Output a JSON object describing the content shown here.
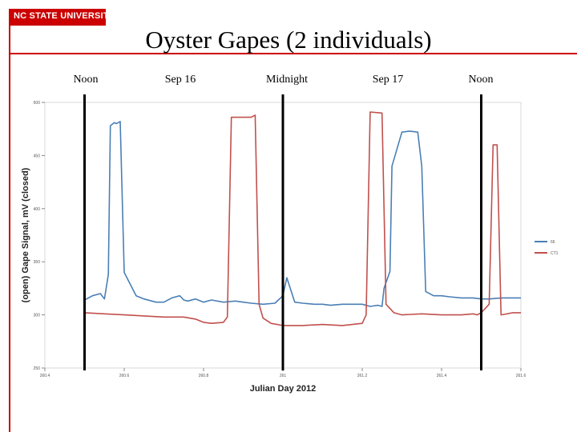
{
  "header": {
    "logo_text": "NC STATE UNIVERSITY",
    "title": "Oyster Gapes (2 individuals)"
  },
  "time_labels": [
    "Noon",
    "Sep 16",
    "Midnight",
    "Sep 17",
    "Noon"
  ],
  "colors": {
    "brand": "#cc0000",
    "series_a": "#4a7fb5",
    "series_b": "#c0504d"
  },
  "chart_data": {
    "type": "line",
    "xlabel": "Julian Day 2012",
    "ylabel": "(open)  Gape Signal, mV  (closed)",
    "xlim": [
      260.4,
      261.6
    ],
    "ylim": [
      250,
      500
    ],
    "xticks": [
      "260.4",
      "260.6",
      "260.8",
      "261",
      "261.2",
      "261.4",
      "261.6"
    ],
    "yticks": [
      "250",
      "300",
      "350",
      "400",
      "450",
      "500"
    ],
    "vertical_lines": [
      260.5,
      261.0,
      261.5
    ],
    "legend": {
      "position": "right"
    },
    "series": [
      {
        "name": "66",
        "x": [
          260.5,
          260.52,
          260.54,
          260.55,
          260.56,
          260.565,
          260.575,
          260.58,
          260.59,
          260.6,
          260.63,
          260.65,
          260.68,
          260.7,
          260.72,
          260.74,
          260.75,
          260.76,
          260.78,
          260.8,
          260.82,
          260.85,
          260.88,
          260.9,
          260.92,
          260.95,
          260.98,
          261.0,
          261.01,
          261.03,
          261.05,
          261.08,
          261.1,
          261.12,
          261.15,
          261.18,
          261.2,
          261.22,
          261.24,
          261.25,
          261.255,
          261.27,
          261.275,
          261.3,
          261.32,
          261.34,
          261.35,
          261.36,
          261.38,
          261.4,
          261.42,
          261.45,
          261.48,
          261.5,
          261.52,
          261.55,
          261.58,
          261.6
        ],
        "y": [
          314,
          318,
          320,
          315,
          338,
          478,
          481,
          480,
          482,
          340,
          318,
          315,
          312,
          312,
          316,
          318,
          314,
          313,
          315,
          312,
          314,
          312,
          313,
          312,
          311,
          310,
          311,
          318,
          335,
          312,
          311,
          310,
          310,
          309,
          310,
          310,
          310,
          308,
          309,
          308,
          325,
          341,
          440,
          472,
          473,
          472,
          440,
          322,
          318,
          318,
          317,
          316,
          316,
          315,
          315,
          316,
          316,
          316
        ]
      },
      {
        "name": "CT1",
        "x": [
          260.5,
          260.55,
          260.6,
          260.65,
          260.7,
          260.75,
          260.78,
          260.8,
          260.82,
          260.85,
          260.86,
          260.87,
          260.9,
          260.92,
          260.93,
          260.94,
          260.95,
          260.97,
          261.0,
          261.05,
          261.1,
          261.15,
          261.2,
          261.21,
          261.22,
          261.25,
          261.26,
          261.28,
          261.3,
          261.35,
          261.4,
          261.45,
          261.48,
          261.49,
          261.5,
          261.52,
          261.53,
          261.54,
          261.55,
          261.58,
          261.6
        ],
        "y": [
          302,
          301,
          300,
          299,
          298,
          298,
          296,
          293,
          292,
          293,
          298,
          486,
          486,
          486,
          488,
          310,
          297,
          292,
          290,
          290,
          291,
          290,
          292,
          300,
          491,
          490,
          310,
          302,
          300,
          301,
          300,
          300,
          301,
          300,
          302,
          310,
          460,
          460,
          300,
          302,
          302
        ]
      }
    ]
  }
}
